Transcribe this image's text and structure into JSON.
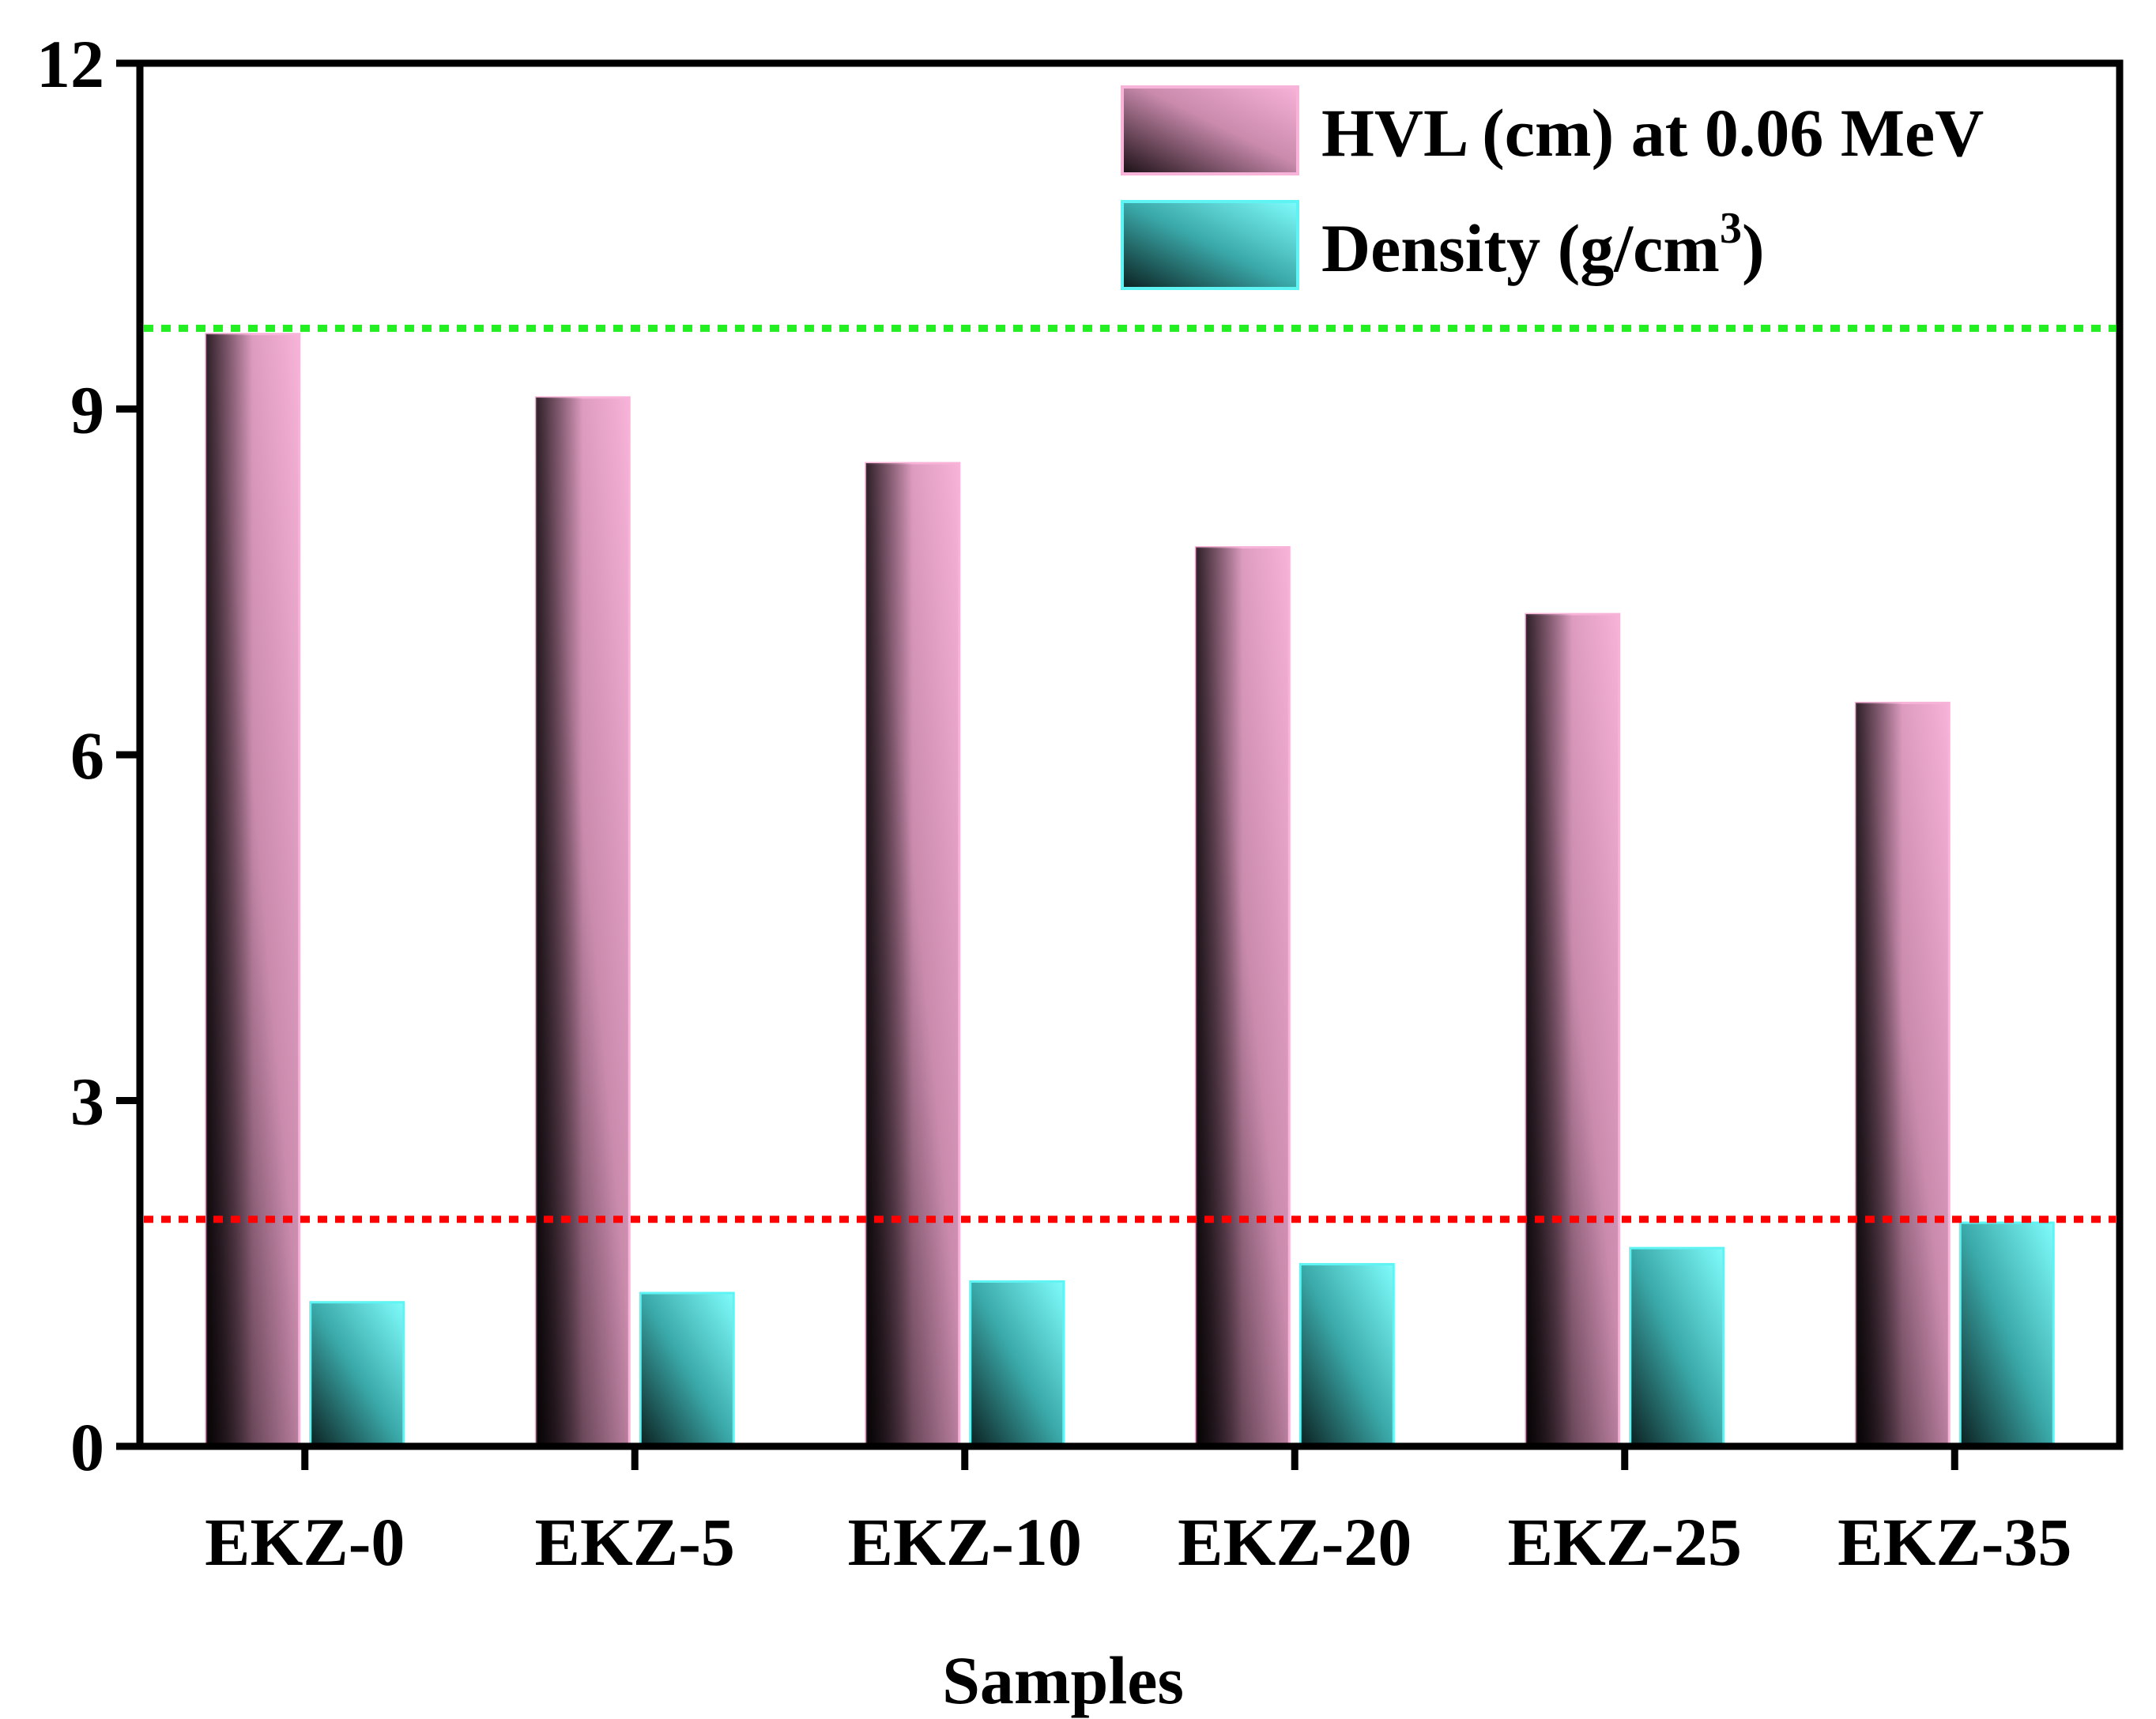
{
  "chart_data": {
    "type": "bar",
    "title": "",
    "xlabel": "Samples",
    "ylabel": "",
    "ylim": [
      0,
      12
    ],
    "yticks": [
      "0",
      "3",
      "6",
      "9",
      "12"
    ],
    "categories": [
      "EKZ-0",
      "EKZ-5",
      "EKZ-10",
      "EKZ-20",
      "EKZ-25",
      "EKZ-35"
    ],
    "series": [
      {
        "name": "HVL (cm) at 0.06 MeV",
        "legend_main": "HVL (cm) at 0.06 MeV",
        "values": [
          9.65,
          9.1,
          8.53,
          7.8,
          7.22,
          6.45
        ],
        "colors": {
          "dark": "#1a0f14",
          "light": "#f7b3d8",
          "edge": "#f7b3d8"
        }
      },
      {
        "name": "Density (g/cm3)",
        "legend_main": "Density (g/cm",
        "legend_sup": "3",
        "legend_end": ")",
        "values": [
          1.25,
          1.33,
          1.43,
          1.58,
          1.72,
          1.94
        ],
        "colors": {
          "dark": "#0b2020",
          "light": "#7ffcfc",
          "edge": "#5ff4f4"
        }
      }
    ],
    "reference_lines": [
      {
        "name": "green-reference-line",
        "value": 9.7,
        "color": "#22ee22"
      },
      {
        "name": "red-reference-line",
        "value": 1.97,
        "color": "#ff0000"
      }
    ],
    "legend_position": "top-right",
    "grid": false
  }
}
